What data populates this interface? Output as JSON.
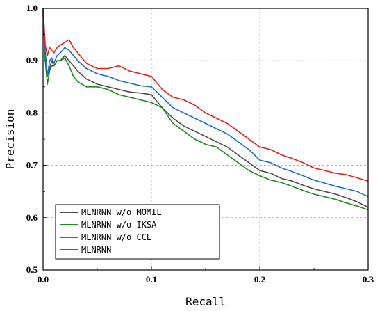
{
  "chart_data": {
    "type": "line",
    "title": "",
    "xlabel": "Recall",
    "ylabel": "Precision",
    "xlim": [
      0.0,
      0.3
    ],
    "ylim": [
      0.5,
      1.0
    ],
    "xticks": [
      "0.0",
      "0.1",
      "0.2",
      "0.3"
    ],
    "yticks": [
      "0.5",
      "0.6",
      "0.7",
      "0.8",
      "0.9",
      "1.0"
    ],
    "grid": true,
    "legend_position": "bottom-left",
    "series": [
      {
        "name": "MLNRNN w/o MOMIL",
        "color": "#4d4d4d",
        "x": [
          0.0,
          0.002,
          0.004,
          0.006,
          0.008,
          0.01,
          0.013,
          0.016,
          0.02,
          0.024,
          0.028,
          0.032,
          0.04,
          0.05,
          0.06,
          0.07,
          0.08,
          0.09,
          0.1,
          0.11,
          0.12,
          0.13,
          0.14,
          0.15,
          0.16,
          0.17,
          0.18,
          0.19,
          0.2,
          0.21,
          0.22,
          0.23,
          0.24,
          0.25,
          0.26,
          0.27,
          0.28,
          0.29,
          0.3
        ],
        "y": [
          0.99,
          0.91,
          0.87,
          0.885,
          0.9,
          0.89,
          0.9,
          0.9,
          0.91,
          0.9,
          0.89,
          0.88,
          0.865,
          0.855,
          0.85,
          0.845,
          0.84,
          0.838,
          0.835,
          0.81,
          0.79,
          0.775,
          0.765,
          0.755,
          0.745,
          0.735,
          0.72,
          0.705,
          0.69,
          0.685,
          0.675,
          0.67,
          0.662,
          0.655,
          0.65,
          0.645,
          0.638,
          0.63,
          0.62
        ]
      },
      {
        "name": "MLNRNN w/o IKSA",
        "color": "#1f8a1f",
        "x": [
          0.0,
          0.002,
          0.004,
          0.006,
          0.008,
          0.01,
          0.013,
          0.016,
          0.02,
          0.024,
          0.028,
          0.032,
          0.04,
          0.05,
          0.06,
          0.07,
          0.08,
          0.09,
          0.1,
          0.11,
          0.12,
          0.13,
          0.14,
          0.15,
          0.16,
          0.17,
          0.18,
          0.19,
          0.2,
          0.21,
          0.22,
          0.23,
          0.24,
          0.25,
          0.26,
          0.27,
          0.28,
          0.29,
          0.3
        ],
        "y": [
          0.99,
          0.9,
          0.855,
          0.88,
          0.89,
          0.89,
          0.9,
          0.9,
          0.905,
          0.89,
          0.87,
          0.86,
          0.85,
          0.85,
          0.845,
          0.835,
          0.83,
          0.825,
          0.82,
          0.81,
          0.78,
          0.765,
          0.75,
          0.74,
          0.735,
          0.72,
          0.705,
          0.69,
          0.68,
          0.672,
          0.667,
          0.66,
          0.652,
          0.645,
          0.64,
          0.635,
          0.628,
          0.622,
          0.615
        ]
      },
      {
        "name": "MLNRNN w/o CCL",
        "color": "#1f6fd0",
        "x": [
          0.0,
          0.002,
          0.004,
          0.006,
          0.008,
          0.01,
          0.013,
          0.016,
          0.02,
          0.024,
          0.028,
          0.032,
          0.04,
          0.05,
          0.06,
          0.07,
          0.08,
          0.09,
          0.1,
          0.11,
          0.12,
          0.13,
          0.14,
          0.15,
          0.16,
          0.17,
          0.18,
          0.19,
          0.2,
          0.21,
          0.22,
          0.23,
          0.24,
          0.25,
          0.26,
          0.27,
          0.28,
          0.29,
          0.3
        ],
        "y": [
          0.995,
          0.92,
          0.87,
          0.9,
          0.905,
          0.895,
          0.91,
          0.915,
          0.925,
          0.92,
          0.91,
          0.9,
          0.885,
          0.875,
          0.87,
          0.862,
          0.857,
          0.852,
          0.85,
          0.83,
          0.81,
          0.8,
          0.79,
          0.78,
          0.77,
          0.76,
          0.745,
          0.73,
          0.71,
          0.705,
          0.695,
          0.688,
          0.68,
          0.672,
          0.666,
          0.66,
          0.655,
          0.65,
          0.64
        ]
      },
      {
        "name": "MLNRNN",
        "color": "#e8201c",
        "x": [
          0.0,
          0.002,
          0.004,
          0.006,
          0.008,
          0.01,
          0.013,
          0.016,
          0.02,
          0.024,
          0.028,
          0.032,
          0.04,
          0.05,
          0.06,
          0.07,
          0.08,
          0.09,
          0.1,
          0.11,
          0.12,
          0.13,
          0.14,
          0.15,
          0.16,
          0.17,
          0.18,
          0.19,
          0.2,
          0.21,
          0.22,
          0.23,
          0.24,
          0.25,
          0.26,
          0.27,
          0.28,
          0.29,
          0.3
        ],
        "y": [
          1.0,
          0.93,
          0.91,
          0.925,
          0.92,
          0.915,
          0.925,
          0.93,
          0.935,
          0.94,
          0.925,
          0.915,
          0.895,
          0.885,
          0.885,
          0.89,
          0.88,
          0.875,
          0.87,
          0.845,
          0.83,
          0.825,
          0.815,
          0.8,
          0.79,
          0.78,
          0.765,
          0.75,
          0.735,
          0.73,
          0.72,
          0.713,
          0.705,
          0.695,
          0.69,
          0.685,
          0.682,
          0.676,
          0.67
        ]
      }
    ]
  }
}
